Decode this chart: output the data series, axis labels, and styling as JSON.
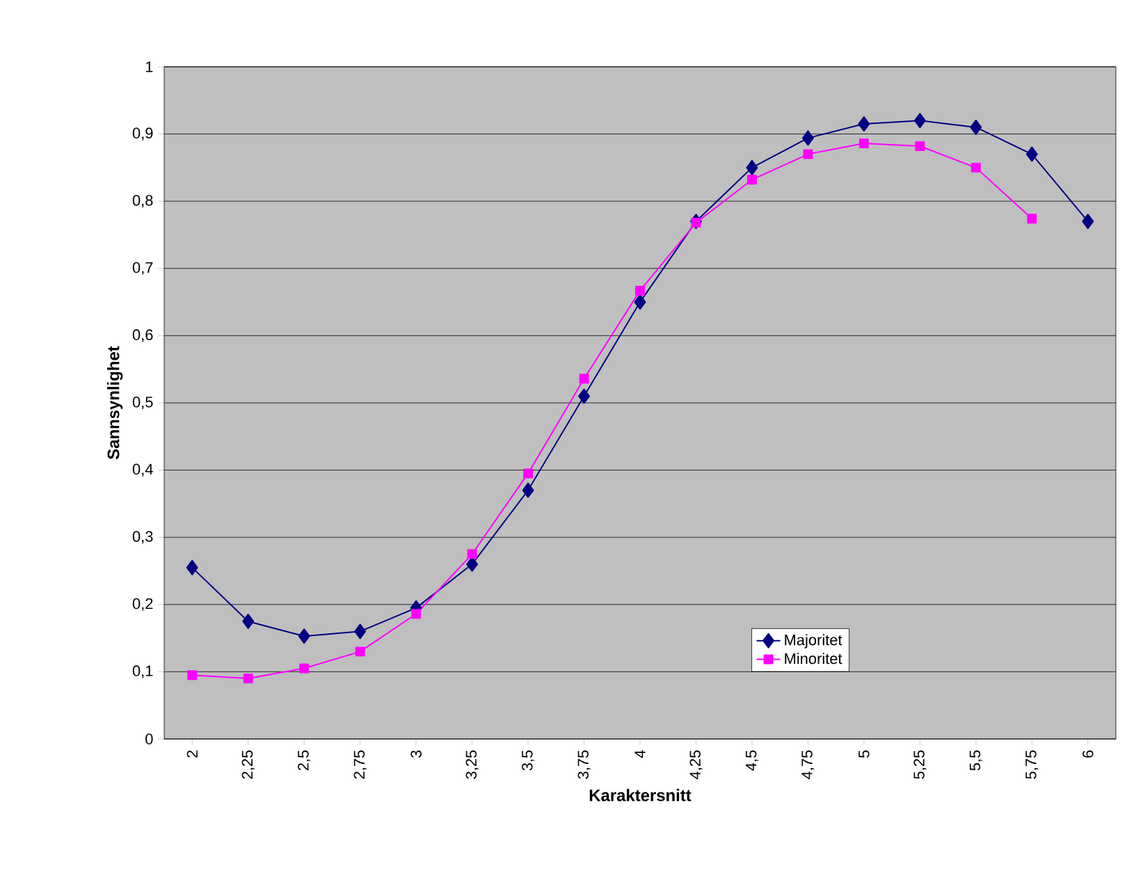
{
  "chart_data": {
    "type": "line",
    "xlabel": "Karaktersnitt",
    "ylabel": "Sannsynlighet",
    "categories": [
      "2",
      "2,25",
      "2,5",
      "2,75",
      "3",
      "3,25",
      "3,5",
      "3,75",
      "4",
      "4,25",
      "4,5",
      "4,75",
      "5",
      "5,25",
      "5,5",
      "5,75",
      "6"
    ],
    "series": [
      {
        "name": "Majoritet",
        "color": "#000080",
        "marker": "diamond",
        "values": [
          0.255,
          0.175,
          0.153,
          0.16,
          0.195,
          0.26,
          0.37,
          0.51,
          0.65,
          0.77,
          0.85,
          0.894,
          0.915,
          0.92,
          0.91,
          0.87,
          0.77
        ]
      },
      {
        "name": "Minoritet",
        "color": "#ff00ff",
        "marker": "square",
        "values": [
          0.095,
          0.09,
          0.105,
          0.13,
          0.186,
          0.275,
          0.395,
          0.536,
          0.667,
          0.768,
          0.832,
          0.87,
          0.886,
          0.882,
          0.85,
          0.774,
          null
        ]
      }
    ],
    "ylim": [
      0,
      1
    ],
    "yticks": [
      {
        "value": 0,
        "label": "0"
      },
      {
        "value": 0.1,
        "label": "0,1"
      },
      {
        "value": 0.2,
        "label": "0,2"
      },
      {
        "value": 0.3,
        "label": "0,3"
      },
      {
        "value": 0.4,
        "label": "0,4"
      },
      {
        "value": 0.5,
        "label": "0,5"
      },
      {
        "value": 0.6,
        "label": "0,6"
      },
      {
        "value": 0.7,
        "label": "0,7"
      },
      {
        "value": 0.8,
        "label": "0,8"
      },
      {
        "value": 0.9,
        "label": "0,9"
      },
      {
        "value": 1,
        "label": "1"
      }
    ],
    "grid": "y",
    "legend": "bottom right"
  }
}
